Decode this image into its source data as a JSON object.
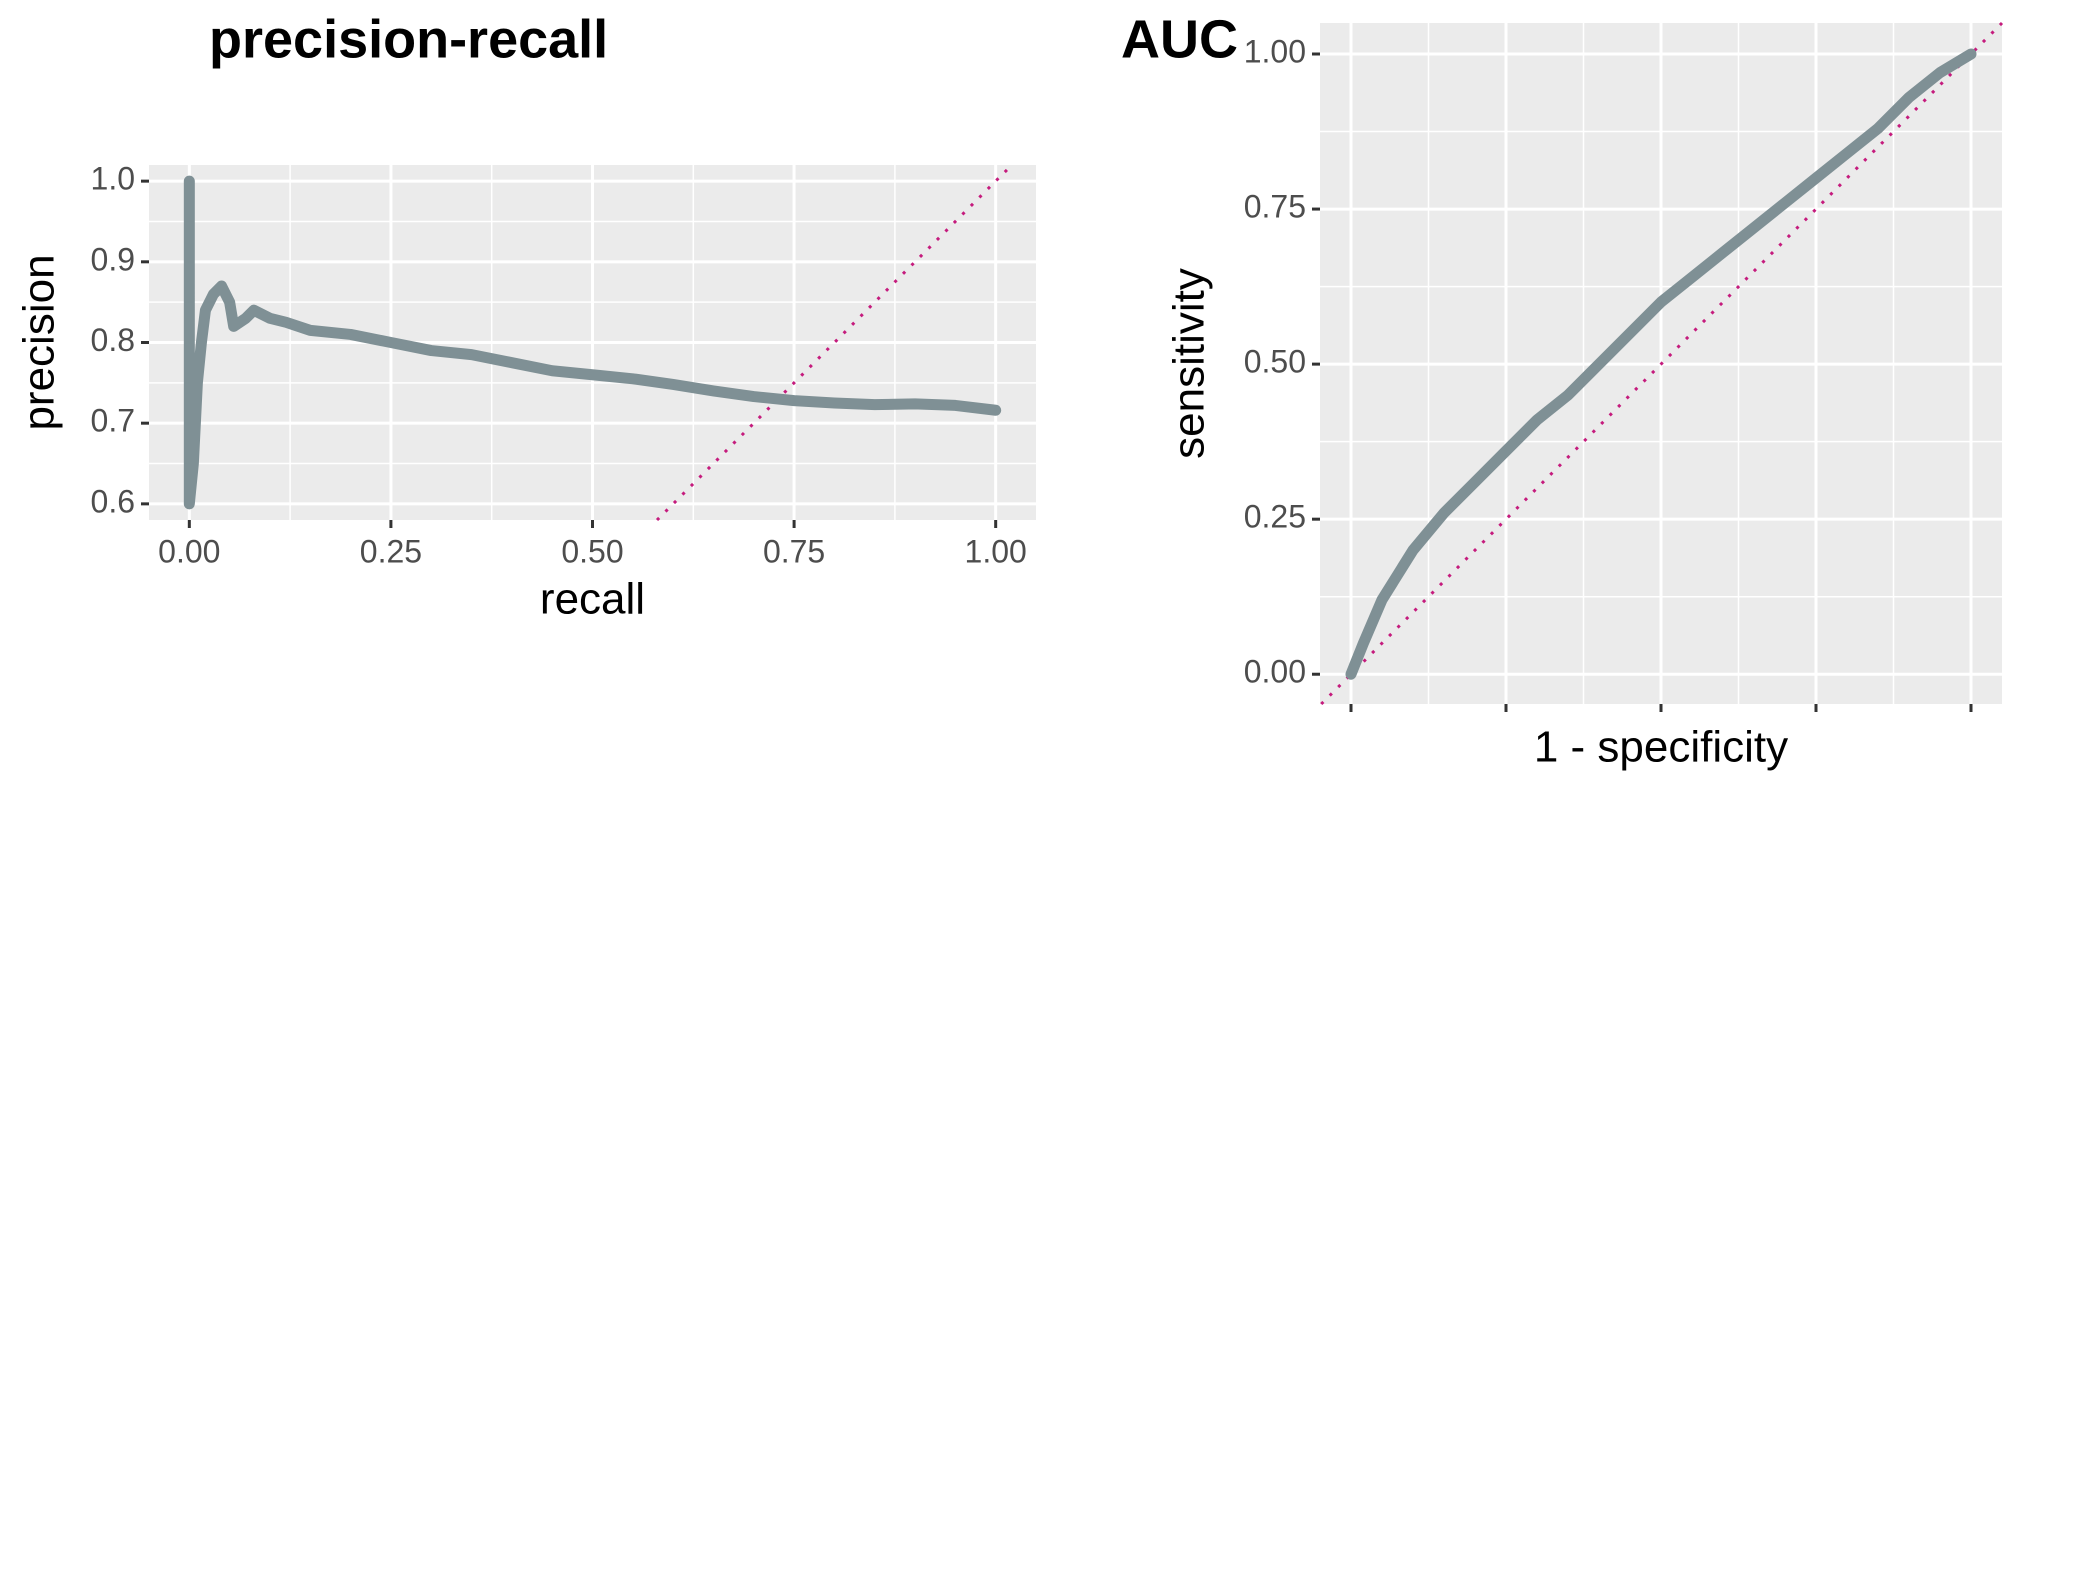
{
  "chart_data": [
    {
      "type": "line",
      "title": "precision-recall",
      "x_label": "recall",
      "y_label": "precision",
      "xlim": [
        -0.05,
        1.05
      ],
      "ylim": [
        0.58,
        1.02
      ],
      "xticks": [
        {
          "value": 0,
          "label": "0.00"
        },
        {
          "value": 0.25,
          "label": "0.25"
        },
        {
          "value": 0.5,
          "label": "0.50"
        },
        {
          "value": 0.75,
          "label": "0.75"
        },
        {
          "value": 1,
          "label": "1.00"
        }
      ],
      "yticks": [
        {
          "value": 0.6,
          "label": "0.6"
        },
        {
          "value": 0.7,
          "label": "0.7"
        },
        {
          "value": 0.8,
          "label": "0.8"
        },
        {
          "value": 0.9,
          "label": "0.9"
        },
        {
          "value": 1,
          "label": "1.0"
        }
      ],
      "grid": true,
      "reference_color": "#c51b7d",
      "series": [
        {
          "color": "#7f9095",
          "x": [
            0,
            0,
            0.005,
            0.01,
            0.015,
            0.02,
            0.03,
            0.04,
            0.05,
            0.055,
            0.07,
            0.08,
            0.1,
            0.12,
            0.15,
            0.2,
            0.25,
            0.3,
            0.35,
            0.4,
            0.45,
            0.5,
            0.55,
            0.6,
            0.65,
            0.7,
            0.75,
            0.8,
            0.85,
            0.9,
            0.95,
            1.0
          ],
          "values": [
            1.0,
            0.6,
            0.65,
            0.75,
            0.8,
            0.84,
            0.86,
            0.87,
            0.85,
            0.82,
            0.83,
            0.84,
            0.83,
            0.825,
            0.815,
            0.81,
            0.8,
            0.79,
            0.785,
            0.775,
            0.765,
            0.76,
            0.755,
            0.748,
            0.74,
            0.733,
            0.728,
            0.725,
            0.723,
            0.724,
            0.722,
            0.716
          ]
        }
      ]
    },
    {
      "type": "line",
      "title": "AUC",
      "x_label": "1 - specificity",
      "y_label": "sensitivity",
      "xlim": [
        -0.05,
        1.05
      ],
      "ylim": [
        -0.048,
        1.05
      ],
      "xticks": [
        0,
        0.25,
        0.5,
        0.75,
        1
      ],
      "yticks": [
        {
          "value": 0,
          "label": "0.00"
        },
        {
          "value": 0.25,
          "label": "0.25"
        },
        {
          "value": 0.5,
          "label": "0.50"
        },
        {
          "value": 0.75,
          "label": "0.75"
        },
        {
          "value": 1,
          "label": "1.00"
        }
      ],
      "grid": true,
      "reference_color": "#c51b7d",
      "series": [
        {
          "color": "#7f9095",
          "x": [
            0,
            0.02,
            0.05,
            0.1,
            0.15,
            0.2,
            0.25,
            0.3,
            0.35,
            0.4,
            0.45,
            0.5,
            0.55,
            0.6,
            0.65,
            0.7,
            0.75,
            0.8,
            0.85,
            0.9,
            0.95,
            1
          ],
          "values": [
            0,
            0.05,
            0.12,
            0.2,
            0.26,
            0.31,
            0.36,
            0.41,
            0.45,
            0.5,
            0.55,
            0.6,
            0.64,
            0.68,
            0.72,
            0.76,
            0.8,
            0.84,
            0.88,
            0.93,
            0.97,
            1
          ]
        }
      ]
    }
  ]
}
